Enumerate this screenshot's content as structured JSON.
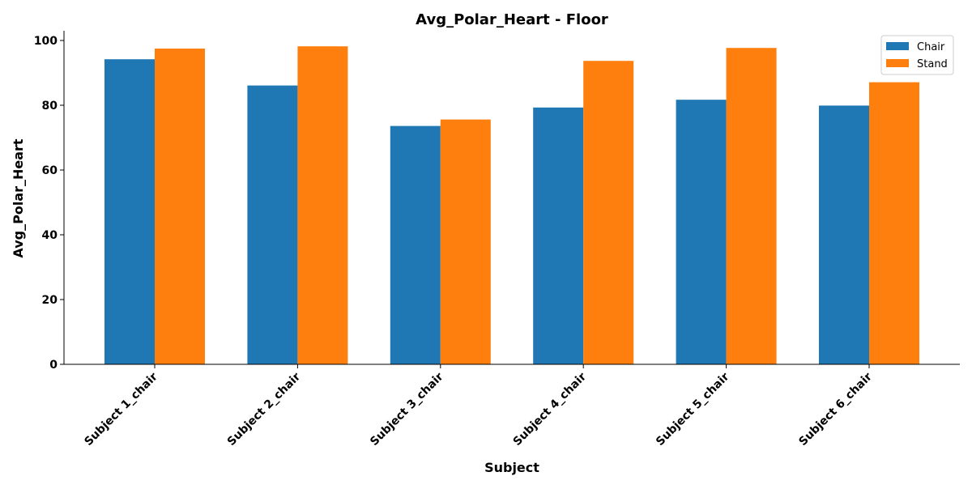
{
  "chart_data": {
    "type": "bar",
    "title": "Avg_Polar_Heart - Floor",
    "xlabel": "Subject",
    "ylabel": "Avg_Polar_Heart",
    "categories": [
      "Subject 1_chair",
      "Subject 2_chair",
      "Subject 3_chair",
      "Subject 4_chair",
      "Subject 5_chair",
      "Subject 6_chair"
    ],
    "series": [
      {
        "name": "Chair",
        "color": "#1f77b4",
        "values": [
          94.2,
          86.1,
          73.6,
          79.3,
          81.7,
          79.9
        ]
      },
      {
        "name": "Stand",
        "color": "#ff7f0e",
        "values": [
          97.5,
          98.2,
          75.6,
          93.7,
          97.7,
          87.1
        ]
      }
    ],
    "ylim": [
      0,
      103
    ],
    "yticks": [
      0,
      20,
      40,
      60,
      80,
      100
    ],
    "legend": "top-right",
    "grid": false
  }
}
